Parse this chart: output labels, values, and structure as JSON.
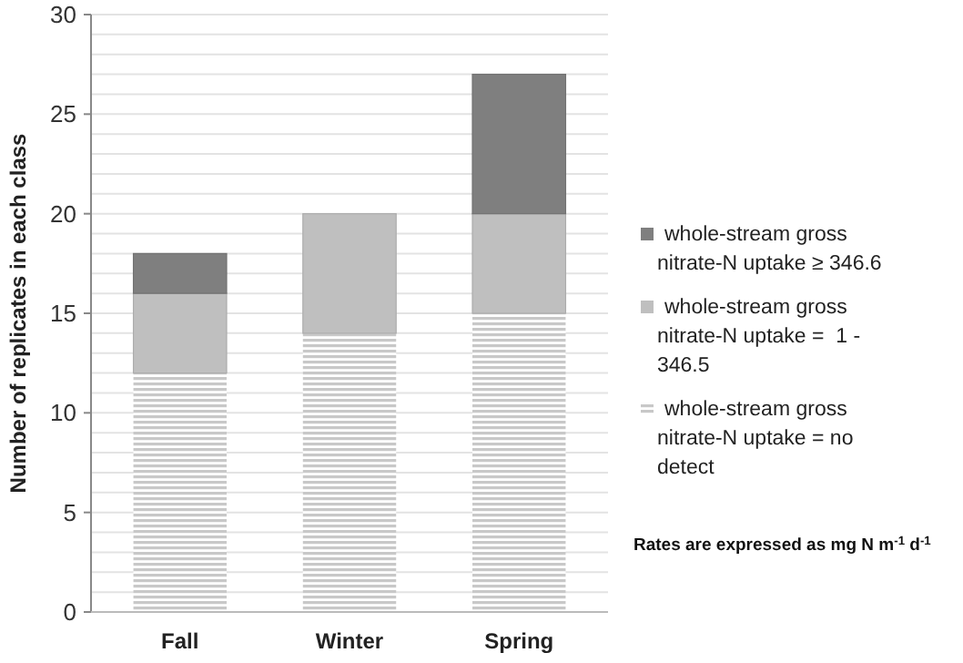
{
  "chart_data": {
    "type": "bar",
    "stacked": true,
    "categories": [
      "Fall",
      "Winter",
      "Spring"
    ],
    "ylabel": "Number of replicates in each class",
    "series": [
      {
        "name": "whole-stream gross nitrate-N uptake = no detect",
        "color": "#c8c8c8",
        "values": [
          12,
          14,
          15
        ]
      },
      {
        "name": "whole-stream gross nitrate-N uptake =  1 - 346.5",
        "color": "#bfbfbf",
        "values": [
          4,
          6,
          5
        ]
      },
      {
        "name": "whole-stream gross nitrate-N uptake ≥ 346.6",
        "color": "#7f7f7f",
        "values": [
          2,
          0,
          7
        ]
      }
    ],
    "ylim": [
      0,
      30
    ],
    "yticks": [
      0,
      {
        "value": 1,
        "label": null
      },
      {
        "value": 2,
        "label": null
      },
      {
        "value": 3,
        "label": null
      },
      {
        "value": 4,
        "label": null
      },
      5,
      {
        "value": 6,
        "label": null
      },
      {
        "value": 7,
        "label": null
      },
      {
        "value": 8,
        "label": null
      },
      {
        "value": 9,
        "label": null
      },
      10,
      {
        "value": 11,
        "label": null
      },
      {
        "value": 12,
        "label": null
      },
      {
        "value": 13,
        "label": null
      },
      {
        "value": 14,
        "label": null
      },
      15,
      {
        "value": 16,
        "label": null
      },
      {
        "value": 17,
        "label": null
      },
      {
        "value": 18,
        "label": null
      },
      {
        "value": 19,
        "label": null
      },
      20,
      {
        "value": 21,
        "label": null
      },
      {
        "value": 22,
        "label": null
      },
      {
        "value": 23,
        "label": null
      },
      {
        "value": 24,
        "label": null
      },
      25,
      {
        "value": 26,
        "label": null
      },
      {
        "value": 27,
        "label": null
      },
      {
        "value": 28,
        "label": null
      },
      {
        "value": 29,
        "label": null
      },
      30
    ],
    "grid": "y",
    "legend": "right",
    "annotations": [
      "Rates are expressed as mg N m$^{-1}$ d$^{-1}$"
    ]
  }
}
